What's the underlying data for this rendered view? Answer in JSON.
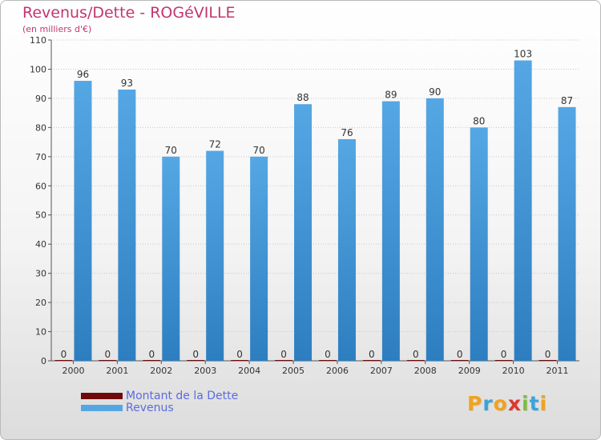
{
  "header": {
    "title": "Revenus/Dette - ROGéVILLE",
    "subtitle": "(en milliers d'€)"
  },
  "colors": {
    "title": "#c2366e",
    "revenus": "#55a7e4",
    "revenus_dark": "#2d7ec0",
    "dette": "#6e0a0a",
    "legend_text": "#5b6be0"
  },
  "chart_data": {
    "type": "bar",
    "title": "Revenus/Dette - ROGéVILLE",
    "subtitle": "(en milliers d'€)",
    "categories": [
      "2000",
      "2001",
      "2002",
      "2003",
      "2004",
      "2005",
      "2006",
      "2007",
      "2008",
      "2009",
      "2010",
      "2011"
    ],
    "series": [
      {
        "name": "Montant de la Dette",
        "values": [
          0,
          0,
          0,
          0,
          0,
          0,
          0,
          0,
          0,
          0,
          0,
          0
        ]
      },
      {
        "name": "Revenus",
        "values": [
          96,
          93,
          70,
          72,
          70,
          88,
          76,
          89,
          90,
          80,
          103,
          87
        ]
      }
    ],
    "ylim": [
      0,
      110
    ],
    "yticks": [
      0,
      10,
      20,
      30,
      40,
      50,
      60,
      70,
      80,
      90,
      100,
      110
    ],
    "grid": true,
    "legend": "bottom-left"
  },
  "legend": {
    "items": [
      {
        "label": "Montant de la Dette",
        "color": "#6e0a0a"
      },
      {
        "label": "Revenus",
        "color": "#55a7e4"
      }
    ]
  },
  "logo": {
    "letters": [
      {
        "ch": "P",
        "color": "#f2a21c"
      },
      {
        "ch": "r",
        "color": "#3aa3d9"
      },
      {
        "ch": "o",
        "color": "#f2a21c"
      },
      {
        "ch": "x",
        "color": "#e0362c"
      },
      {
        "ch": "i",
        "color": "#7bbf3a"
      },
      {
        "ch": "t",
        "color": "#3aa3d9"
      },
      {
        "ch": "i",
        "color": "#f2a21c"
      }
    ]
  }
}
